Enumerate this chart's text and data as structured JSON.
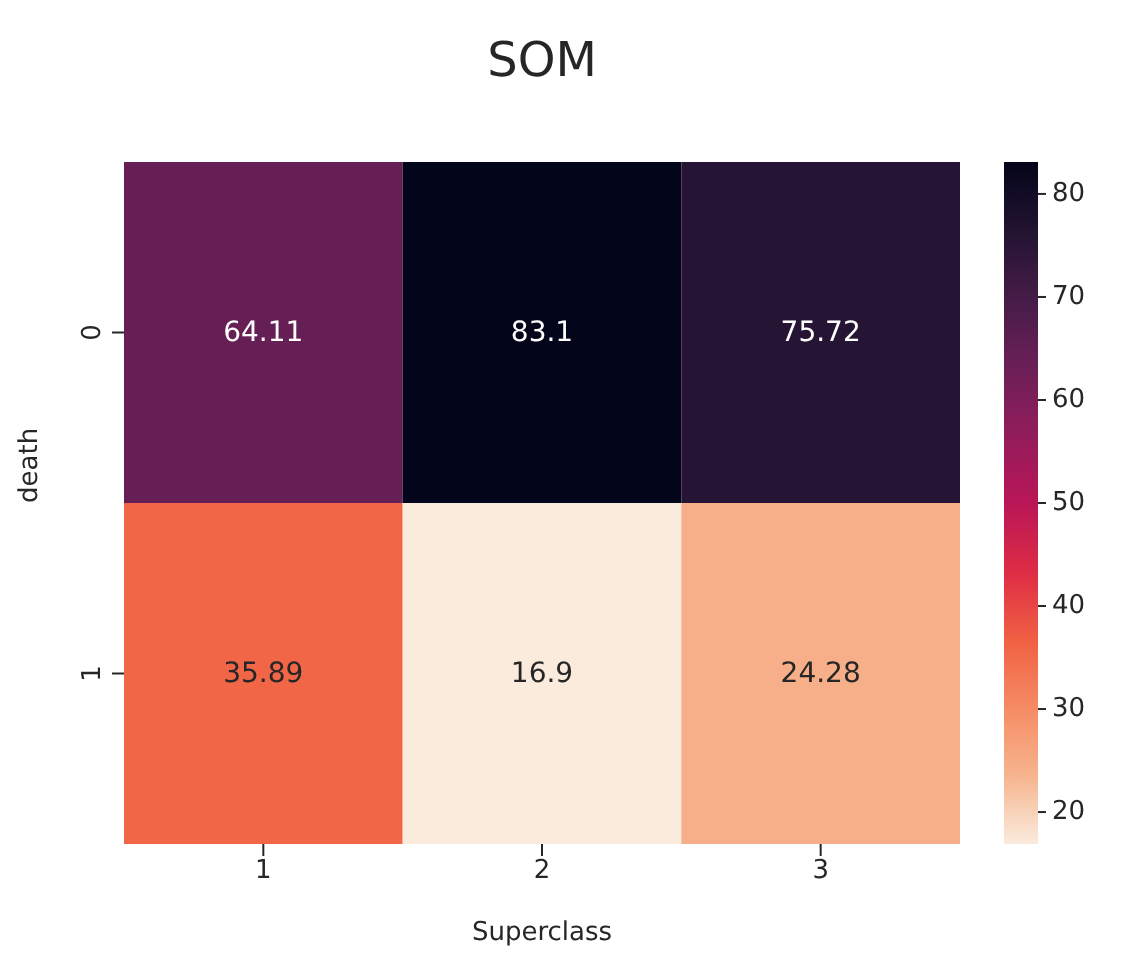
{
  "chart_data": {
    "type": "heatmap",
    "title": "SOM",
    "xlabel": "Superclass",
    "ylabel": "death",
    "categories": [
      "1",
      "2",
      "3"
    ],
    "y_categories": [
      "0",
      "1"
    ],
    "cells": [
      [
        64.11,
        83.1,
        75.72
      ],
      [
        35.89,
        16.9,
        24.28
      ]
    ],
    "data_labels": true,
    "clim": [
      16.9,
      83.1
    ],
    "cticks": [
      20,
      30,
      40,
      50,
      60,
      70,
      80
    ]
  }
}
